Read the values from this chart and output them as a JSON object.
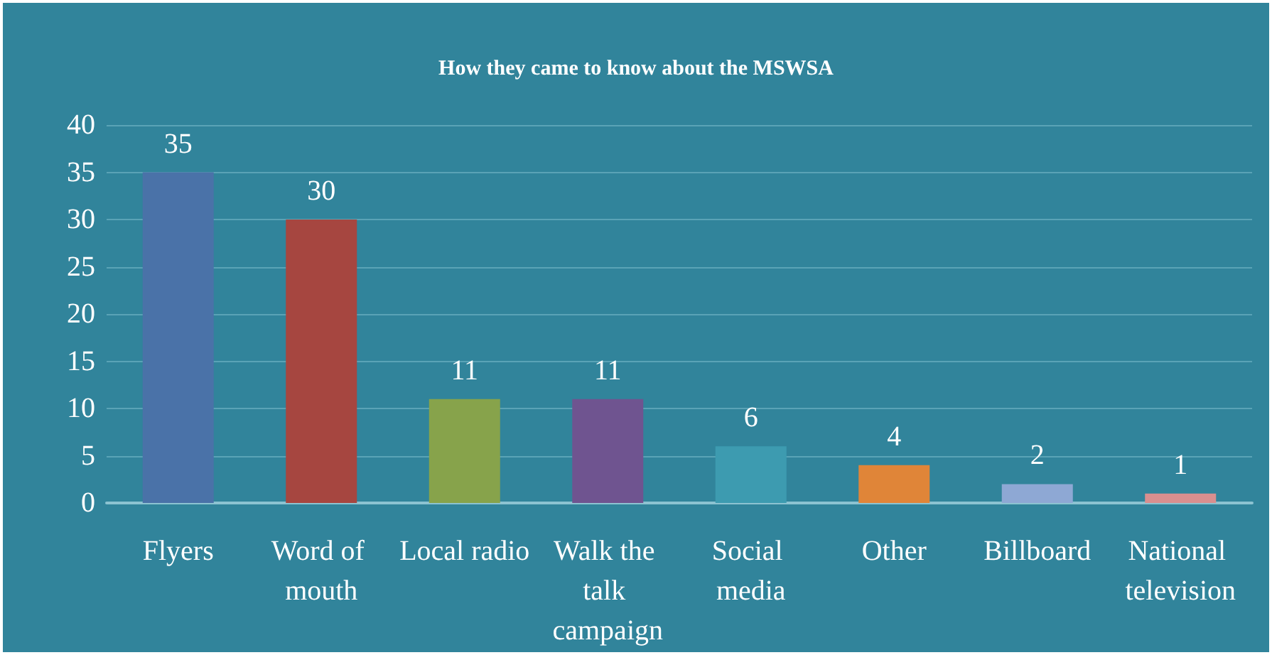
{
  "chart_data": {
    "type": "bar",
    "title": "How they came to know about the MSWSA",
    "categories": [
      "Flyers",
      "Word of mouth",
      "Local radio",
      "Walk the talk campaign",
      "Social media",
      "Other",
      "Billboard",
      "National television"
    ],
    "values": [
      35,
      30,
      11,
      11,
      6,
      4,
      2,
      1
    ],
    "colors": [
      "#4a72a8",
      "#a64640",
      "#87a34b",
      "#6f5490",
      "#3d9bb0",
      "#e08538",
      "#8ea8d4",
      "#d98f8f"
    ],
    "ylim": [
      0,
      40
    ],
    "yticks": [
      0,
      5,
      10,
      15,
      20,
      25,
      30,
      35,
      40
    ],
    "grid": "y",
    "data_labels": true
  }
}
